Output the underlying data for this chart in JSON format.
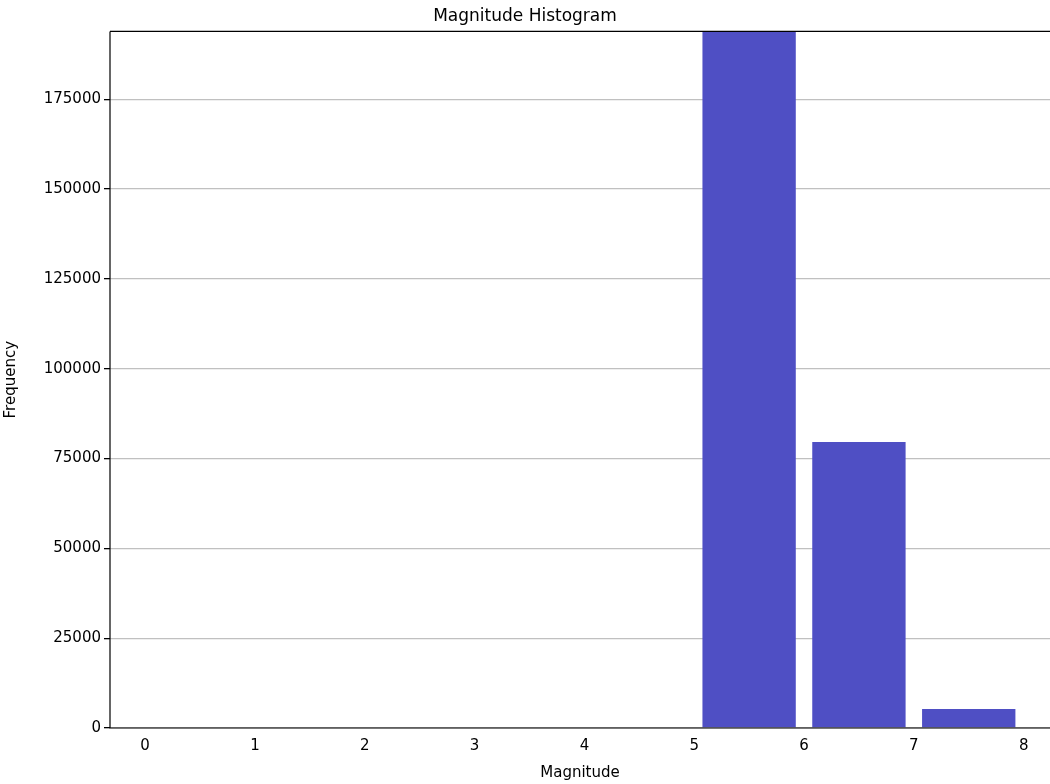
{
  "chart_data": {
    "type": "histogram",
    "title": "Magnitude Histogram",
    "xlabel": "Magnitude",
    "ylabel": "Frequency",
    "bins": [
      0,
      1,
      2,
      3,
      4,
      5,
      6,
      7,
      8
    ],
    "values": [
      0,
      0,
      0,
      0,
      0,
      193900,
      79600,
      5300
    ],
    "color": "#4f4fc4",
    "xlim": [
      -0.32,
      8.24
    ],
    "xticks": [
      0,
      1,
      2,
      3,
      4,
      5,
      6,
      7,
      8
    ],
    "ylim": [
      0,
      193900
    ],
    "yticks": [
      0,
      25000,
      50000,
      75000,
      100000,
      125000,
      150000,
      175000
    ],
    "grid": "y",
    "legend": false
  }
}
